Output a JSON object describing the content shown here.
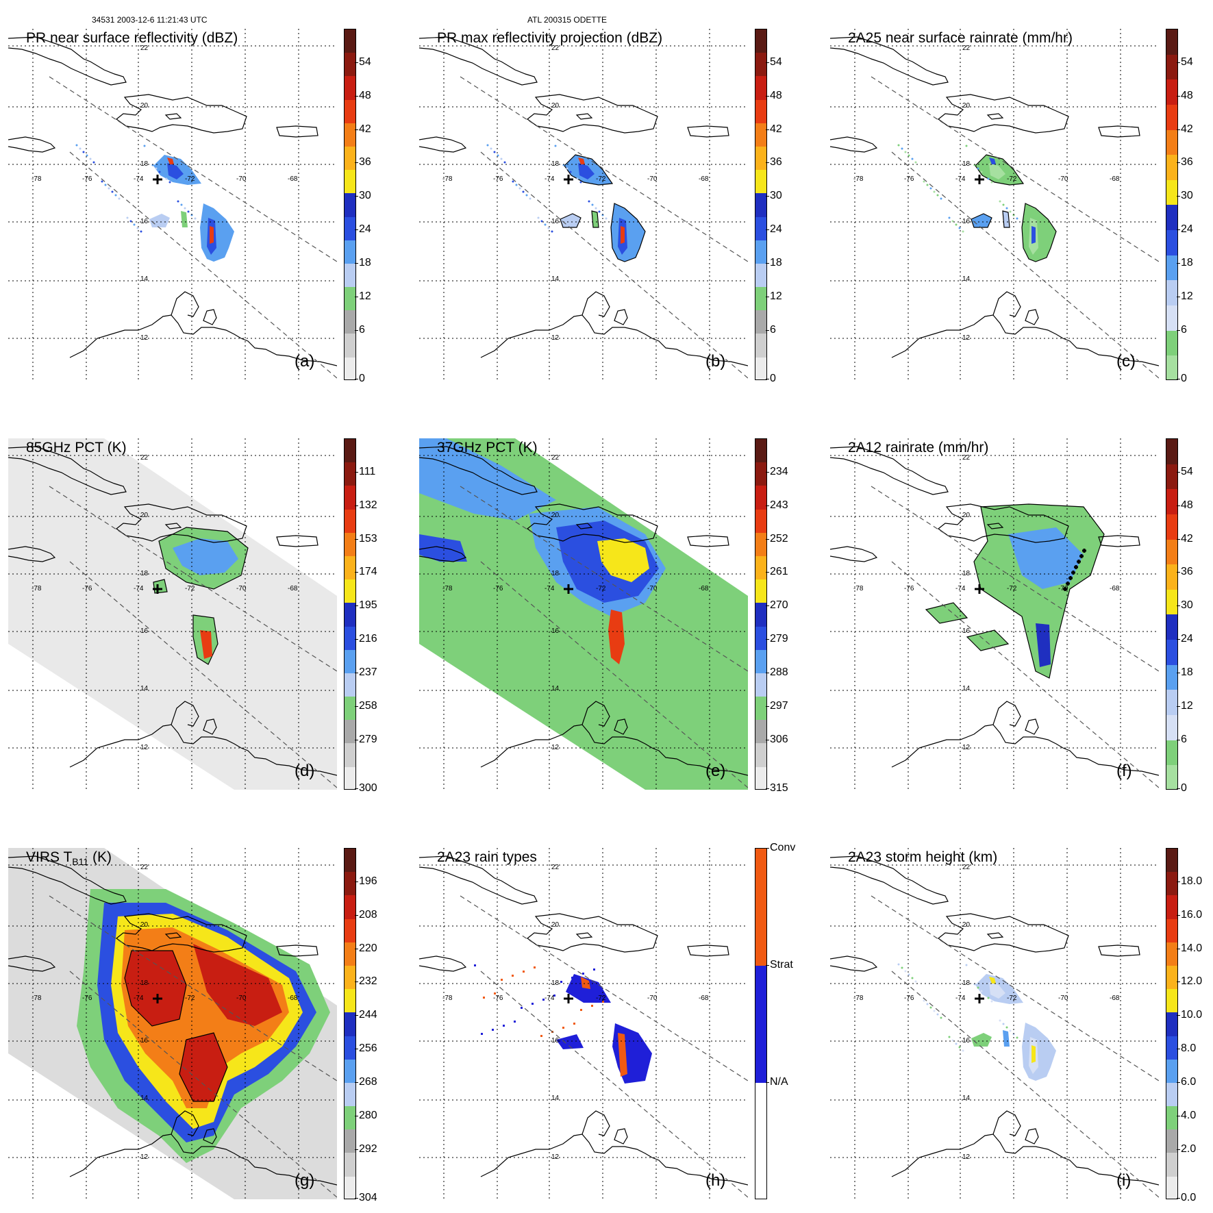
{
  "header": {
    "orbit_info": "34531 2003-12-6 11:21:43 UTC",
    "storm_info": "ATL 200315 ODETTE"
  },
  "map_grid": {
    "lon_labels": [
      "-78",
      "-76",
      "-74",
      "-72",
      "-70",
      "-68"
    ],
    "lat_labels": [
      "22",
      "20",
      "18",
      "16",
      "14",
      "12"
    ]
  },
  "colors": {
    "coast": "#000000",
    "swath_edge": "#555555"
  },
  "panels": [
    {
      "id": "a",
      "title": "PR near surface reflectivity (dBZ)",
      "label": "(a)",
      "ticks": [
        "54",
        "48",
        "42",
        "36",
        "30",
        "24",
        "18",
        "12",
        "6",
        "0"
      ],
      "bar": [
        "#5a1a14",
        "#8b1a10",
        "#c81e12",
        "#e83c12",
        "#f37e17",
        "#fbb21b",
        "#f6e61a",
        "#1f2fc0",
        "#2b4fe0",
        "#5aa0f0",
        "#b9cdf2",
        "#7ed07a",
        "#a9a9a9",
        "#cfcfcf",
        "#ececec"
      ]
    },
    {
      "id": "b",
      "title": "PR max reflectivity projection (dBZ)",
      "label": "(b)",
      "ticks": [
        "54",
        "48",
        "42",
        "36",
        "30",
        "24",
        "18",
        "12",
        "6",
        "0"
      ],
      "bar": [
        "#5a1a14",
        "#8b1a10",
        "#c81e12",
        "#e83c12",
        "#f37e17",
        "#fbb21b",
        "#f6e61a",
        "#1f2fc0",
        "#2b4fe0",
        "#5aa0f0",
        "#b9cdf2",
        "#7ed07a",
        "#a9a9a9",
        "#cfcfcf",
        "#ececec"
      ]
    },
    {
      "id": "c",
      "title": "2A25 near surface rainrate (mm/hr)",
      "label": "(c)",
      "ticks": [
        "54",
        "48",
        "42",
        "36",
        "30",
        "24",
        "18",
        "12",
        "6",
        "0"
      ],
      "bar": [
        "#5a1a14",
        "#8b1a10",
        "#c81e12",
        "#e83c12",
        "#f37e17",
        "#fbb21b",
        "#f6e61a",
        "#1f2fc0",
        "#2b4fe0",
        "#5aa0f0",
        "#b9cdf2",
        "#d6e0f5",
        "#7ed07a",
        "#a6e0a0"
      ]
    },
    {
      "id": "d",
      "title": "85GHz PCT (K)",
      "label": "(d)",
      "ticks": [
        "111",
        "132",
        "153",
        "174",
        "195",
        "216",
        "237",
        "258",
        "279",
        "300"
      ],
      "bar": [
        "#5a1a14",
        "#8b1a10",
        "#c81e12",
        "#e83c12",
        "#f37e17",
        "#fbb21b",
        "#f6e61a",
        "#1f2fc0",
        "#2b4fe0",
        "#5aa0f0",
        "#b9cdf2",
        "#7ed07a",
        "#a9a9a9",
        "#cfcfcf",
        "#ececec"
      ]
    },
    {
      "id": "e",
      "title": "37GHz PCT (K)",
      "label": "(e)",
      "ticks": [
        "234",
        "243",
        "252",
        "261",
        "270",
        "279",
        "288",
        "297",
        "306",
        "315"
      ],
      "bar": [
        "#5a1a14",
        "#8b1a10",
        "#c81e12",
        "#e83c12",
        "#f37e17",
        "#fbb21b",
        "#f6e61a",
        "#1f2fc0",
        "#2b4fe0",
        "#5aa0f0",
        "#b9cdf2",
        "#7ed07a",
        "#a9a9a9",
        "#cfcfcf",
        "#ececec"
      ]
    },
    {
      "id": "f",
      "title": "2A12 rainrate (mm/hr)",
      "label": "(f)",
      "ticks": [
        "54",
        "48",
        "42",
        "36",
        "30",
        "24",
        "18",
        "12",
        "6",
        "0"
      ],
      "bar": [
        "#5a1a14",
        "#8b1a10",
        "#c81e12",
        "#e83c12",
        "#f37e17",
        "#fbb21b",
        "#f6e61a",
        "#1f2fc0",
        "#2b4fe0",
        "#5aa0f0",
        "#b9cdf2",
        "#d6e0f5",
        "#7ed07a",
        "#a6e0a0"
      ]
    },
    {
      "id": "g",
      "title": "VIRS T",
      "title_sub": "B11",
      "title_suffix": " (K)",
      "label": "(g)",
      "ticks": [
        "196",
        "208",
        "220",
        "232",
        "244",
        "256",
        "268",
        "280",
        "292",
        "304"
      ],
      "bar": [
        "#5a1a14",
        "#8b1a10",
        "#c81e12",
        "#e83c12",
        "#f37e17",
        "#fbb21b",
        "#f6e61a",
        "#1f2fc0",
        "#2b4fe0",
        "#5aa0f0",
        "#b9cdf2",
        "#7ed07a",
        "#a9a9a9",
        "#cfcfcf",
        "#ececec"
      ]
    },
    {
      "id": "h",
      "title": "2A23 rain types",
      "label": "(h)",
      "ticks": [
        "Conv",
        "Strat",
        "N/A"
      ],
      "bar": [
        "#f05a12",
        "#1f1fd8",
        "#ffffff"
      ]
    },
    {
      "id": "i",
      "title": "2A23 storm height (km)",
      "label": "(i)",
      "ticks": [
        "18.0",
        "16.0",
        "14.0",
        "12.0",
        "10.0",
        "8.0",
        "6.0",
        "4.0",
        "2.0",
        "0.0"
      ],
      "bar": [
        "#5a1a14",
        "#8b1a10",
        "#c81e12",
        "#e83c12",
        "#f37e17",
        "#fbb21b",
        "#f6e61a",
        "#1f2fc0",
        "#2b4fe0",
        "#5aa0f0",
        "#b9cdf2",
        "#7ed07a",
        "#a9a9a9",
        "#cfcfcf",
        "#ececec"
      ]
    }
  ]
}
